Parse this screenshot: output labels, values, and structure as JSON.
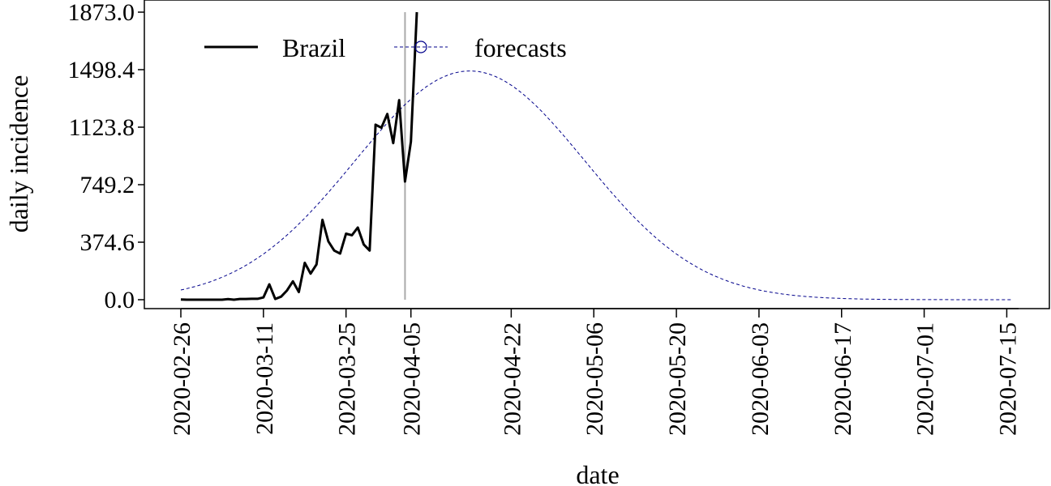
{
  "chart_data": {
    "type": "line",
    "xlabel": "date",
    "ylabel": "daily incidence",
    "ylim": [
      0,
      1873.0
    ],
    "yticks": [
      "0.0",
      "374.6",
      "749.2",
      "1123.8",
      "1498.4",
      "1873.0"
    ],
    "xticks": [
      "2020-02-26",
      "2020-03-11",
      "2020-03-25",
      "2020-04-05",
      "2020-04-22",
      "2020-05-06",
      "2020-05-20",
      "2020-06-03",
      "2020-06-17",
      "2020-07-01",
      "2020-07-15"
    ],
    "xlim": [
      "2020-02-26",
      "2020-07-17"
    ],
    "legend_position": "top-left",
    "forecast_start": "2020-04-04",
    "series": [
      {
        "name": "Brazil",
        "style": "solid",
        "color": "#000000",
        "points": [
          [
            "2020-02-26",
            1
          ],
          [
            "2020-02-27",
            0
          ],
          [
            "2020-02-28",
            0
          ],
          [
            "2020-02-29",
            0
          ],
          [
            "2020-03-01",
            0
          ],
          [
            "2020-03-02",
            0
          ],
          [
            "2020-03-03",
            0
          ],
          [
            "2020-03-04",
            0
          ],
          [
            "2020-03-05",
            4
          ],
          [
            "2020-03-06",
            0
          ],
          [
            "2020-03-07",
            5
          ],
          [
            "2020-03-08",
            5
          ],
          [
            "2020-03-09",
            6
          ],
          [
            "2020-03-10",
            6
          ],
          [
            "2020-03-11",
            15
          ],
          [
            "2020-03-12",
            100
          ],
          [
            "2020-03-13",
            5
          ],
          [
            "2020-03-14",
            20
          ],
          [
            "2020-03-15",
            60
          ],
          [
            "2020-03-16",
            120
          ],
          [
            "2020-03-17",
            50
          ],
          [
            "2020-03-18",
            240
          ],
          [
            "2020-03-19",
            170
          ],
          [
            "2020-03-20",
            230
          ],
          [
            "2020-03-21",
            520
          ],
          [
            "2020-03-22",
            380
          ],
          [
            "2020-03-23",
            320
          ],
          [
            "2020-03-24",
            300
          ],
          [
            "2020-03-25",
            430
          ],
          [
            "2020-03-26",
            420
          ],
          [
            "2020-03-27",
            470
          ],
          [
            "2020-03-28",
            360
          ],
          [
            "2020-03-29",
            320
          ],
          [
            "2020-03-30",
            1140
          ],
          [
            "2020-03-31",
            1120
          ],
          [
            "2020-04-01",
            1210
          ],
          [
            "2020-04-02",
            1020
          ],
          [
            "2020-04-03",
            1300
          ],
          [
            "2020-04-04",
            770
          ],
          [
            "2020-04-05",
            1030
          ],
          [
            "2020-04-06",
            1873
          ]
        ]
      },
      {
        "name": "forecasts",
        "style": "dashed",
        "color": "#00008B",
        "marker": "open-circle",
        "model": "gaussian",
        "peak_date": "2020-04-15",
        "peak_value": 1490,
        "spread_days": 19.5,
        "start": "2020-02-26",
        "end": "2020-07-16"
      }
    ]
  }
}
